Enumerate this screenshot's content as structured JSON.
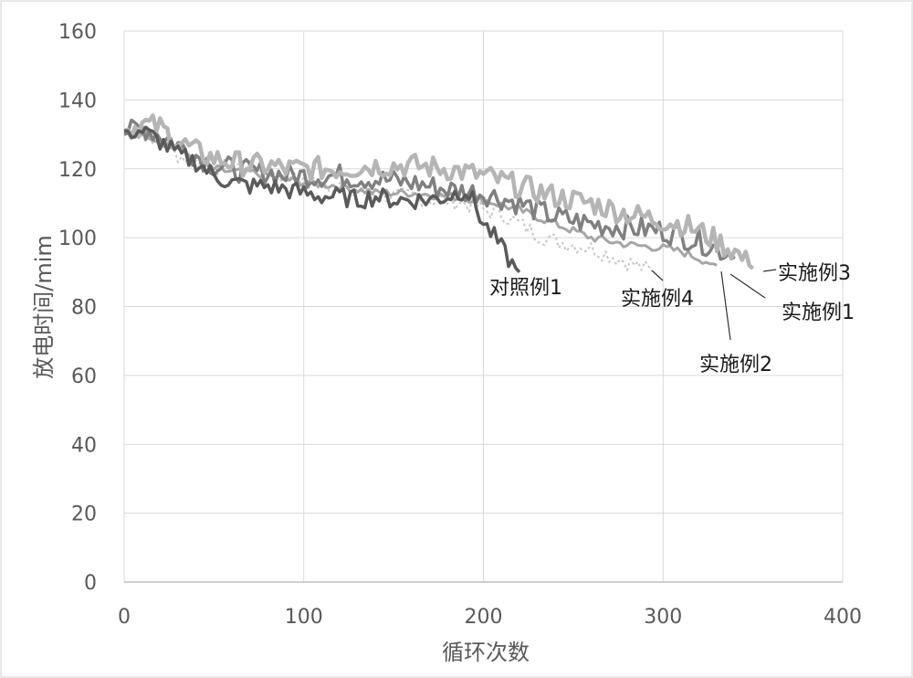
{
  "chart_data": {
    "type": "line",
    "title": "",
    "xlabel": "循环次数",
    "ylabel": "放电时间/mim",
    "xlim": [
      0,
      400
    ],
    "ylim": [
      0,
      160
    ],
    "xticks": [
      0,
      100,
      200,
      300,
      400
    ],
    "yticks": [
      0,
      20,
      40,
      60,
      80,
      100,
      120,
      140,
      160
    ],
    "grid": true,
    "legend": "none",
    "colors": {
      "frame": "#bfbfbf",
      "grid": "#d9d9d9",
      "series_dark": "#5a5a5a",
      "series_mid": "#808080",
      "series_light": "#a6a6a6",
      "series_lighter": "#b5b5b5",
      "series_dotted": "#c8c8c8"
    },
    "series": [
      {
        "key": "ctrl1",
        "label": "对照例1",
        "x": [
          0,
          10,
          20,
          30,
          40,
          50,
          60,
          70,
          80,
          90,
          100,
          110,
          120,
          130,
          140,
          150,
          160,
          170,
          180,
          190,
          195,
          200,
          205,
          210,
          215,
          220
        ],
        "y": [
          131,
          131,
          128,
          124,
          122,
          118,
          116,
          115,
          115,
          114,
          113,
          112,
          112,
          111,
          112,
          111,
          111,
          111,
          112,
          114,
          110,
          104,
          101,
          97,
          93,
          90
        ]
      },
      {
        "key": "ex4",
        "label": "实施例4",
        "x": [
          0,
          10,
          20,
          30,
          40,
          50,
          60,
          70,
          80,
          90,
          100,
          110,
          120,
          130,
          140,
          150,
          160,
          170,
          180,
          190,
          200,
          210,
          220,
          230,
          240,
          250,
          260,
          270,
          280,
          290,
          295
        ],
        "y": [
          130,
          131,
          128,
          124,
          122,
          120,
          121,
          120,
          119,
          118,
          117,
          116,
          115,
          114,
          113,
          112,
          112,
          111,
          111,
          110,
          108,
          107,
          104,
          101,
          99,
          98,
          97,
          95,
          93,
          91,
          90
        ]
      },
      {
        "key": "ex2",
        "label": "实施例2",
        "x": [
          0,
          10,
          20,
          30,
          40,
          50,
          60,
          70,
          80,
          90,
          100,
          120,
          140,
          160,
          180,
          200,
          220,
          240,
          260,
          280,
          300,
          310,
          320,
          330
        ],
        "y": [
          130,
          131,
          128,
          126,
          123,
          120,
          119,
          119,
          118,
          117,
          116,
          115,
          113,
          113,
          112,
          111,
          108,
          104,
          100,
          98,
          97,
          96,
          94,
          92
        ]
      },
      {
        "key": "ex1",
        "label": "实施例1",
        "x": [
          0,
          10,
          20,
          30,
          40,
          50,
          60,
          70,
          80,
          90,
          100,
          120,
          140,
          160,
          180,
          200,
          220,
          240,
          260,
          280,
          300,
          320,
          330,
          340
        ],
        "y": [
          130,
          132,
          130,
          127,
          124,
          121,
          120,
          119,
          119,
          118,
          118,
          118,
          117,
          116,
          114,
          113,
          110,
          106,
          104,
          103,
          102,
          99,
          97,
          94
        ]
      },
      {
        "key": "ex3",
        "label": "实施例3",
        "x": [
          0,
          10,
          20,
          30,
          40,
          50,
          60,
          70,
          80,
          90,
          100,
          120,
          140,
          160,
          180,
          200,
          220,
          240,
          260,
          280,
          300,
          310,
          320,
          330,
          340,
          350
        ],
        "y": [
          131,
          133,
          132,
          128,
          125,
          123,
          122,
          121,
          121,
          120,
          120,
          120,
          121,
          121,
          120,
          118,
          115,
          112,
          110,
          107,
          105,
          104,
          102,
          99,
          96,
          91
        ]
      }
    ],
    "annotations": [
      {
        "key": "ctrl1",
        "text": "对照例1"
      },
      {
        "key": "ex4",
        "text": "实施例4"
      },
      {
        "key": "ex3",
        "text": "实施例3"
      },
      {
        "key": "ex1",
        "text": "实施例1"
      },
      {
        "key": "ex2",
        "text": "实施例2"
      }
    ]
  }
}
